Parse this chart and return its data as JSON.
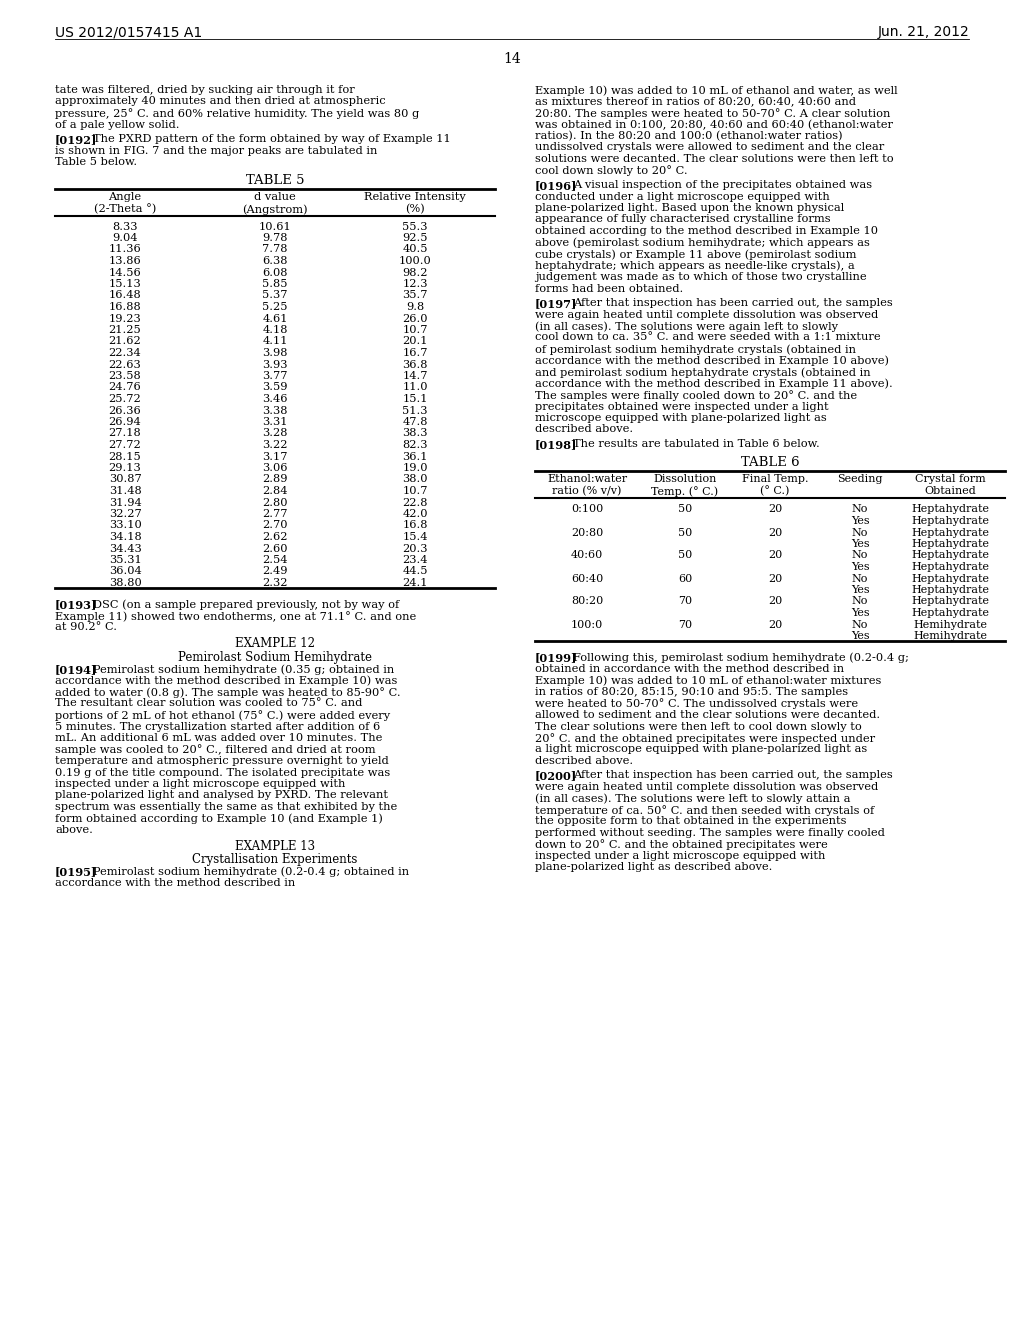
{
  "header_left": "US 2012/0157415 A1",
  "header_right": "Jun. 21, 2012",
  "page_number": "14",
  "background_color": "#ffffff",
  "table5_title": "TABLE 5",
  "table5_data": [
    [
      "8.33",
      "10.61",
      "55.3"
    ],
    [
      "9.04",
      "9.78",
      "92.5"
    ],
    [
      "11.36",
      "7.78",
      "40.5"
    ],
    [
      "13.86",
      "6.38",
      "100.0"
    ],
    [
      "14.56",
      "6.08",
      "98.2"
    ],
    [
      "15.13",
      "5.85",
      "12.3"
    ],
    [
      "16.48",
      "5.37",
      "35.7"
    ],
    [
      "16.88",
      "5.25",
      "9.8"
    ],
    [
      "19.23",
      "4.61",
      "26.0"
    ],
    [
      "21.25",
      "4.18",
      "10.7"
    ],
    [
      "21.62",
      "4.11",
      "20.1"
    ],
    [
      "22.34",
      "3.98",
      "16.7"
    ],
    [
      "22.63",
      "3.93",
      "36.8"
    ],
    [
      "23.58",
      "3.77",
      "14.7"
    ],
    [
      "24.76",
      "3.59",
      "11.0"
    ],
    [
      "25.72",
      "3.46",
      "15.1"
    ],
    [
      "26.36",
      "3.38",
      "51.3"
    ],
    [
      "26.94",
      "3.31",
      "47.8"
    ],
    [
      "27.18",
      "3.28",
      "38.3"
    ],
    [
      "27.72",
      "3.22",
      "82.3"
    ],
    [
      "28.15",
      "3.17",
      "36.1"
    ],
    [
      "29.13",
      "3.06",
      "19.0"
    ],
    [
      "30.87",
      "2.89",
      "38.0"
    ],
    [
      "31.48",
      "2.84",
      "10.7"
    ],
    [
      "31.94",
      "2.80",
      "22.8"
    ],
    [
      "32.27",
      "2.77",
      "42.0"
    ],
    [
      "33.10",
      "2.70",
      "16.8"
    ],
    [
      "34.18",
      "2.62",
      "15.4"
    ],
    [
      "34.43",
      "2.60",
      "20.3"
    ],
    [
      "35.31",
      "2.54",
      "23.4"
    ],
    [
      "36.04",
      "2.49",
      "44.5"
    ],
    [
      "38.80",
      "2.32",
      "24.1"
    ]
  ],
  "table6_title": "TABLE 6",
  "table6_data": [
    [
      "0:100",
      "50",
      "20",
      "No",
      "Heptahydrate"
    ],
    [
      "",
      "",
      "",
      "Yes",
      "Heptahydrate"
    ],
    [
      "20:80",
      "50",
      "20",
      "No",
      "Heptahydrate"
    ],
    [
      "",
      "",
      "",
      "Yes",
      "Heptahydrate"
    ],
    [
      "40:60",
      "50",
      "20",
      "No",
      "Heptahydrate"
    ],
    [
      "",
      "",
      "",
      "Yes",
      "Heptahydrate"
    ],
    [
      "60:40",
      "60",
      "20",
      "No",
      "Heptahydrate"
    ],
    [
      "",
      "",
      "",
      "Yes",
      "Heptahydrate"
    ],
    [
      "80:20",
      "70",
      "20",
      "No",
      "Heptahydrate"
    ],
    [
      "",
      "",
      "",
      "Yes",
      "Heptahydrate"
    ],
    [
      "100:0",
      "70",
      "20",
      "No",
      "Hemihydrate"
    ],
    [
      "",
      "",
      "",
      "Yes",
      "Hemihydrate"
    ]
  ],
  "left_text": [
    {
      "type": "body",
      "text": "tate was filtered, dried by sucking air through it for approximately 40 minutes and then dried at atmospheric pressure, 25° C. and 60% relative humidity. The yield was 80 g of a pale yellow solid."
    },
    {
      "type": "numbered",
      "num": "[0192]",
      "text": "The PXRD pattern of the form obtained by way of Example 11 is shown in FIG. 7 and the major peaks are tabulated in Table 5 below."
    },
    {
      "type": "table5"
    },
    {
      "type": "numbered",
      "num": "[0193]",
      "text": "DSC (on a sample prepared previously, not by way of Example 11) showed two endotherms, one at 71.1° C. and one at 90.2° C."
    },
    {
      "type": "center",
      "text": "EXAMPLE 12"
    },
    {
      "type": "center",
      "text": "Pemirolast Sodium Hemihydrate"
    },
    {
      "type": "numbered",
      "num": "[0194]",
      "text": "Pemirolast sodium hemihydrate (0.35 g; obtained in accordance with the method described in Example 10) was added to water (0.8 g). The sample was heated to 85-90° C. The resultant clear solution was cooled to 75° C. and portions of 2 mL of hot ethanol (75° C.) were added every 5 minutes. The crystallization started after addition of 6 mL. An additional 6 mL was added over 10 minutes. The sample was cooled to 20° C., filtered and dried at room temperature and atmospheric pressure overnight to yield 0.19 g of the title compound. The isolated precipitate was inspected under a light microscope equipped with plane-polarized light and analysed by PXRD. The relevant spectrum was essentially the same as that exhibited by the form obtained according to Example 10 (and Example 1) above."
    },
    {
      "type": "center",
      "text": "EXAMPLE 13"
    },
    {
      "type": "center",
      "text": "Crystallisation Experiments"
    },
    {
      "type": "numbered",
      "num": "[0195]",
      "text": "Pemirolast sodium hemihydrate (0.2-0.4 g; obtained in accordance with the method described in"
    }
  ],
  "right_text": [
    {
      "type": "body",
      "text": "Example 10) was added to 10 mL of ethanol and water, as well as mixtures thereof in ratios of 80:20, 60:40, 40:60 and 20:80. The samples were heated to 50-70° C. A clear solution was obtained in 0:100, 20:80, 40:60 and 60:40 (ethanol:water ratios). In the 80:20 and 100:0 (ethanol:water ratios) undissolved crystals were allowed to sediment and the clear solutions were decanted. The clear solutions were then left to cool down slowly to 20° C."
    },
    {
      "type": "numbered",
      "num": "[0196]",
      "text": "A visual inspection of the precipitates obtained was conducted under a light microscope equipped with plane-polarized light. Based upon the known physical appearance of fully characterised crystalline forms obtained according to the method described in Example 10 above (pemirolast sodium hemihydrate; which appears as cube crystals) or Example 11 above (pemirolast sodium heptahydrate; which appears as needle-like crystals), a judgement was made as to which of those two crystalline forms had been obtained."
    },
    {
      "type": "numbered",
      "num": "[0197]",
      "text": "After that inspection has been carried out, the samples were again heated until complete dissolution was observed (in all cases). The solutions were again left to slowly cool down to ca. 35° C. and were seeded with a 1:1 mixture of pemirolast sodium hemihydrate crystals (obtained in accordance with the method described in Example 10 above) and pemirolast sodium heptahydrate crystals (obtained in accordance with the method described in Example 11 above). The samples were finally cooled down to 20° C. and the precipitates obtained were inspected under a light microscope equipped with plane-polarized light as described above."
    },
    {
      "type": "numbered",
      "num": "[0198]",
      "text": "The results are tabulated in Table 6 below."
    },
    {
      "type": "table6"
    },
    {
      "type": "numbered",
      "num": "[0199]",
      "text": "Following this, pemirolast sodium hemihydrate (0.2-0.4 g; obtained in accordance with the method described in Example 10) was added to 10 mL of ethanol:water mixtures in ratios of 80:20, 85:15, 90:10 and 95:5. The samples were heated to 50-70° C. The undissolved crystals were allowed to sediment and the clear solutions were decanted. The clear solutions were then left to cool down slowly to 20° C. and the obtained precipitates were inspected under a light microscope equipped with plane-polarized light as described above."
    },
    {
      "type": "numbered",
      "num": "[0200]",
      "text": "After that inspection has been carried out, the samples were again heated until complete dissolution was observed (in all cases). The solutions were left to slowly attain a temperature of ca. 50° C. and then seeded with crystals of the opposite form to that obtained in the experiments performed without seeding. The samples were finally cooled down to 20° C. and the obtained precipitates were inspected under a light microscope equipped with plane-polarized light as described above."
    }
  ]
}
